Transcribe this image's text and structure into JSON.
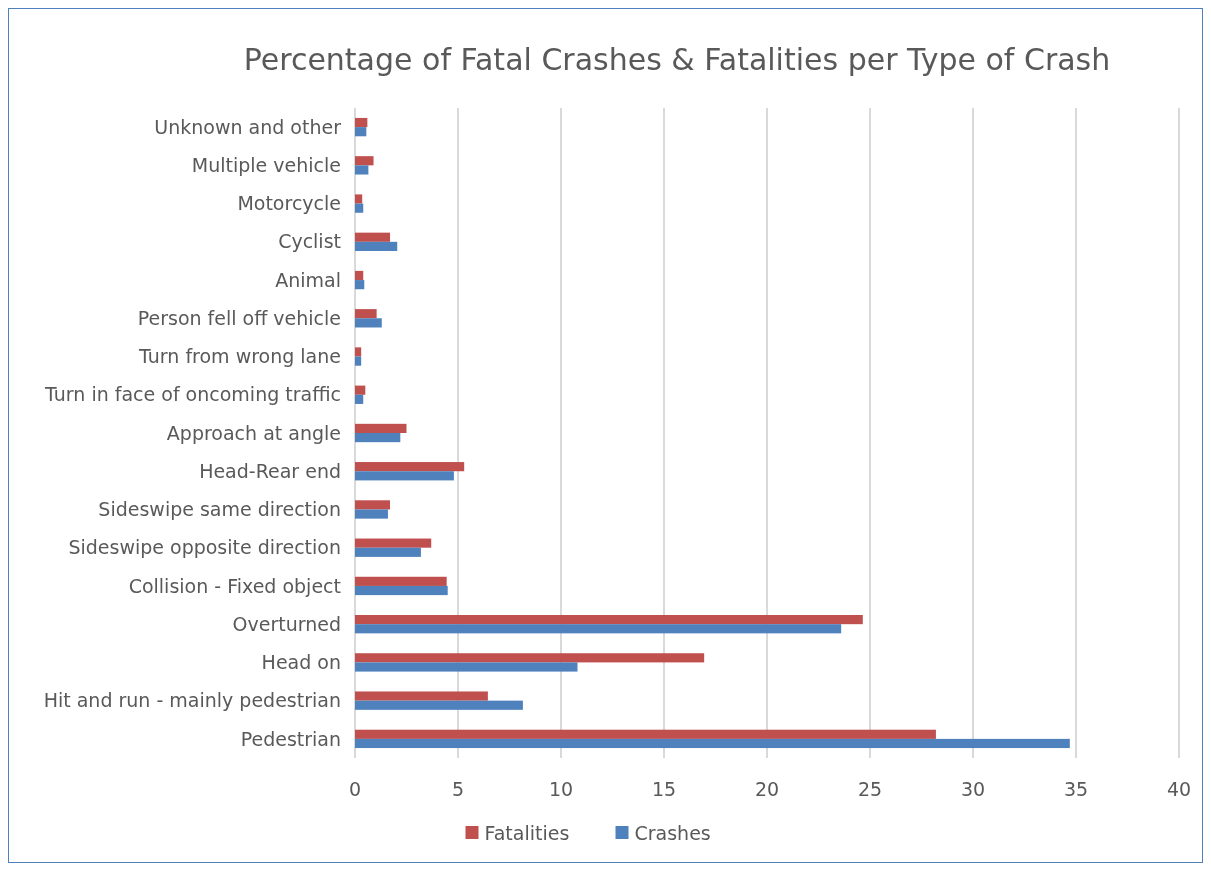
{
  "chart_data": {
    "type": "bar",
    "orientation": "horizontal",
    "title": "Percentage of Fatal Crashes & Fatalities per Type of Crash",
    "categories": [
      "Unknown and other",
      "Multiple vehicle",
      "Motorcycle",
      "Cyclist",
      "Animal",
      "Person fell off vehicle",
      "Turn from wrong lane",
      "Turn in face of oncoming traffic",
      "Approach at angle",
      "Head-Rear end",
      "Sideswipe same direction",
      "Sideswipe opposite direction",
      "Collision - Fixed object",
      "Overturned",
      "Head on",
      "Hit and run - mainly pedestrian",
      "Pedestrian"
    ],
    "series": [
      {
        "name": "Fatalities",
        "color": "#c0504d",
        "values": [
          0.6,
          0.9,
          0.35,
          1.7,
          0.4,
          1.05,
          0.3,
          0.5,
          2.5,
          5.3,
          1.7,
          3.7,
          4.45,
          24.65,
          16.95,
          6.45,
          28.2
        ]
      },
      {
        "name": "Crashes",
        "color": "#4f81bd",
        "values": [
          0.55,
          0.65,
          0.4,
          2.05,
          0.45,
          1.3,
          0.3,
          0.4,
          2.2,
          4.8,
          1.6,
          3.2,
          4.5,
          23.6,
          10.8,
          8.15,
          34.7
        ]
      }
    ],
    "xlim": [
      0,
      40
    ],
    "xticks": [
      0,
      5,
      10,
      15,
      20,
      25,
      30,
      35,
      40
    ],
    "grid": "x",
    "legend": "bottom"
  }
}
